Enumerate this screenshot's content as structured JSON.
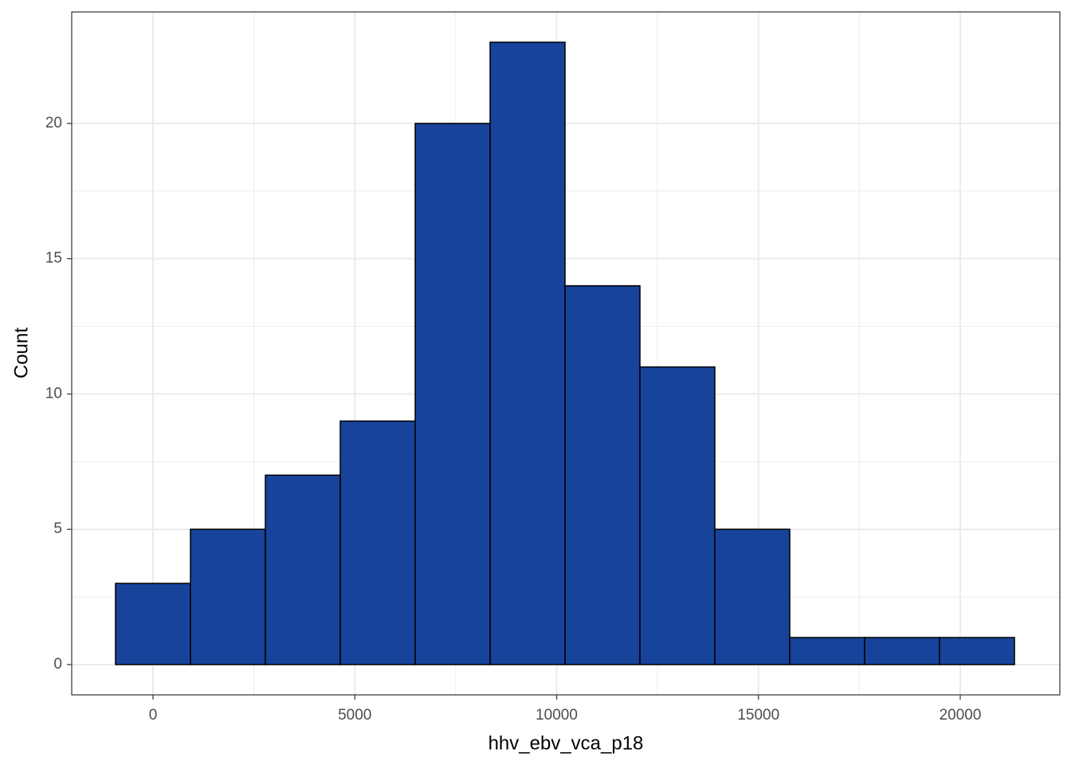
{
  "chart_data": {
    "type": "histogram",
    "x_label": "hhv_ebv_vca_p18",
    "y_label": "Count",
    "bins": [
      -928,
      928,
      2784,
      4640,
      6496,
      8352,
      10208,
      12064,
      13920,
      15776,
      17632,
      19488,
      21344
    ],
    "values": [
      3,
      5,
      7,
      9,
      20,
      23,
      14,
      11,
      5,
      1,
      1,
      1
    ],
    "color": "#18439a",
    "edgecolor": "#000000",
    "xlim": [
      -2014,
      22468
    ],
    "xticks": [
      0,
      5000,
      10000,
      15000,
      20000
    ],
    "ylim": [
      -1.12,
      24.12
    ],
    "yticks": [
      0,
      5,
      10,
      15,
      20
    ],
    "grid": true
  }
}
